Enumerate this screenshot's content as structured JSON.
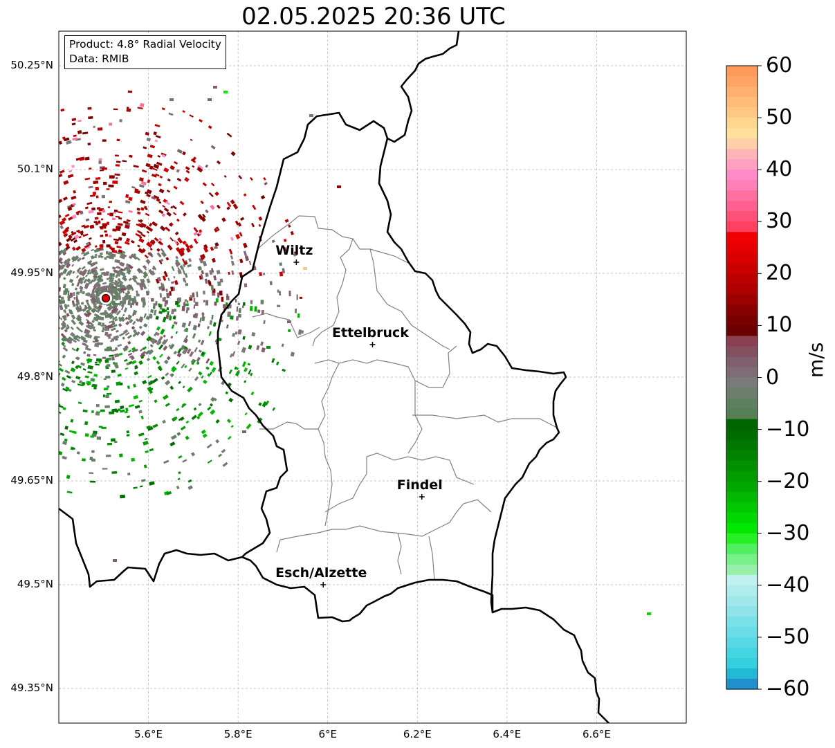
{
  "title": "02.05.2025 20:36 UTC",
  "info": {
    "product": "Product: 4.8° Radial Velocity",
    "data": "Data: RMIB"
  },
  "map": {
    "lon_range": [
      5.4,
      6.8
    ],
    "lat_range": [
      49.3,
      50.3
    ],
    "lat_ticks": [
      {
        "value": 50.25,
        "label": "50.25°N"
      },
      {
        "value": 50.1,
        "label": "50.1°N"
      },
      {
        "value": 49.95,
        "label": "49.95°N"
      },
      {
        "value": 49.8,
        "label": "49.8°N"
      },
      {
        "value": 49.65,
        "label": "49.65°N"
      },
      {
        "value": 49.5,
        "label": "49.5°N"
      },
      {
        "value": 49.35,
        "label": "49.35°N"
      }
    ],
    "lon_ticks": [
      {
        "value": 5.6,
        "label": "5.6°E"
      },
      {
        "value": 5.8,
        "label": "5.8°E"
      },
      {
        "value": 6.0,
        "label": "6°E"
      },
      {
        "value": 6.2,
        "label": "6.2°E"
      },
      {
        "value": 6.4,
        "label": "6.4°E"
      },
      {
        "value": 6.6,
        "label": "6.6°E"
      }
    ],
    "cities": [
      {
        "name": "Wiltz",
        "lon": 5.93,
        "lat": 49.966
      },
      {
        "name": "Ettelbruck",
        "lon": 6.1,
        "lat": 49.847
      },
      {
        "name": "Findel",
        "lon": 6.21,
        "lat": 49.627
      },
      {
        "name": "Esch/Alzette",
        "lon": 5.99,
        "lat": 49.5
      }
    ],
    "radar_site": {
      "lon": 5.505,
      "lat": 49.914,
      "color": "#e00000"
    },
    "colors": {
      "border": "#000000",
      "cantons": "#808080",
      "grid": "#b0b0b0"
    }
  },
  "colorbar": {
    "unit": "m/s",
    "min": -60,
    "max": 60,
    "tick_labels": [
      {
        "value": 60,
        "label": "60"
      },
      {
        "value": 50,
        "label": "50"
      },
      {
        "value": 40,
        "label": "40"
      },
      {
        "value": 30,
        "label": "30"
      },
      {
        "value": 20,
        "label": "20"
      },
      {
        "value": 10,
        "label": "10"
      },
      {
        "value": 0,
        "label": "0"
      },
      {
        "value": -10,
        "label": "−10"
      },
      {
        "value": -20,
        "label": "−20"
      },
      {
        "value": -30,
        "label": "−30"
      },
      {
        "value": -40,
        "label": "−40"
      },
      {
        "value": -50,
        "label": "−50"
      },
      {
        "value": -60,
        "label": "−60"
      }
    ],
    "colors_top_to_bottom": [
      "#ff9a5a",
      "#ffa464",
      "#ffb070",
      "#ffbc78",
      "#ffc882",
      "#ffd690",
      "#ffe09c",
      "#ffd0a8",
      "#ffb4b8",
      "#ffa0c0",
      "#ff8cc8",
      "#ff80b8",
      "#ff70a0",
      "#ff6090",
      "#ff5078",
      "#ff4060",
      "#f00000",
      "#e60000",
      "#d80000",
      "#ca0000",
      "#bc0000",
      "#ae0000",
      "#9c0000",
      "#880000",
      "#7a0000",
      "#6c0000",
      "#8a4050",
      "#845060",
      "#80606e",
      "#806c76",
      "#7a7a78",
      "#6e7e6e",
      "#5e8060",
      "#558055",
      "#006400",
      "#006c00",
      "#007800",
      "#008400",
      "#009000",
      "#009c00",
      "#00a800",
      "#00b800",
      "#00c800",
      "#00d800",
      "#00e800",
      "#24f024",
      "#50f060",
      "#78f088",
      "#98f0a8",
      "#c0f0f0",
      "#b0ecee",
      "#a0e8ec",
      "#8ee4ea",
      "#7ce0e8",
      "#6adce6",
      "#58d8e4",
      "#46d4e2",
      "#34d0e0",
      "#24b8d8",
      "#2090cc"
    ]
  }
}
